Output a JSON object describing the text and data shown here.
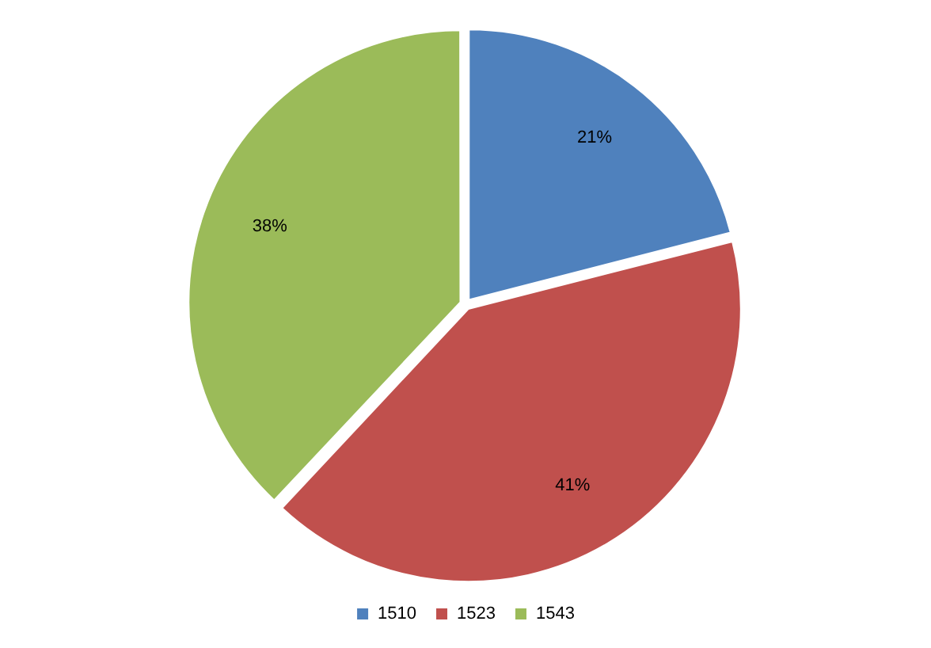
{
  "chart_data": {
    "type": "pie",
    "categories": [
      "1510",
      "1523",
      "1543"
    ],
    "values": [
      21,
      41,
      38
    ],
    "colors": [
      "#4f81bd",
      "#c0504d",
      "#9bbb59"
    ],
    "value_labels": [
      "21%",
      "41%",
      "38%"
    ],
    "legend": "bottom"
  }
}
